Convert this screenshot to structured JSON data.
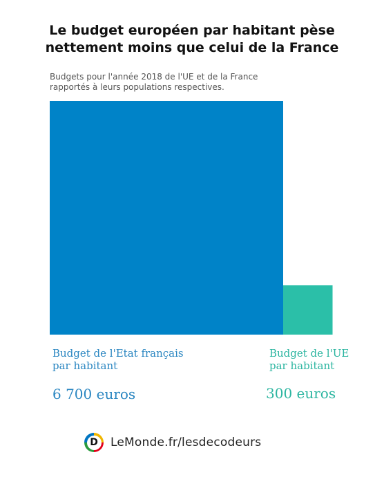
{
  "title": {
    "line1": "Le budget européen par habitant pèse",
    "line2": "nettement moins que celui de la France"
  },
  "subtitle": {
    "line1": "Budgets pour l'année 2018 de l'UE et de la France",
    "line2": "rapportés à leurs populations respectives."
  },
  "chart_data": {
    "type": "bar",
    "categories": [
      "Budget de l'Etat français par habitant",
      "Budget de l'UE par habitant"
    ],
    "values": [
      6700,
      300
    ],
    "unit": "euros",
    "value_labels": [
      "6 700 euros",
      "300 euros"
    ],
    "colors": [
      "#0083c8",
      "#2bbfa8"
    ],
    "encoding": "area"
  },
  "labels": {
    "france": {
      "line1": "Budget de l'Etat français",
      "line2": "par habitant",
      "value": "6 700 euros",
      "color": "#2a86c1"
    },
    "eu": {
      "line1": "Budget de l'UE",
      "line2": "par habitant",
      "value": "300 euros",
      "color": "#2bb5a0"
    }
  },
  "footer": {
    "logo_letter": "D",
    "logo_icon": "les-decodeurs-logo-icon",
    "text": "LeMonde.fr/lesdecodeurs"
  }
}
